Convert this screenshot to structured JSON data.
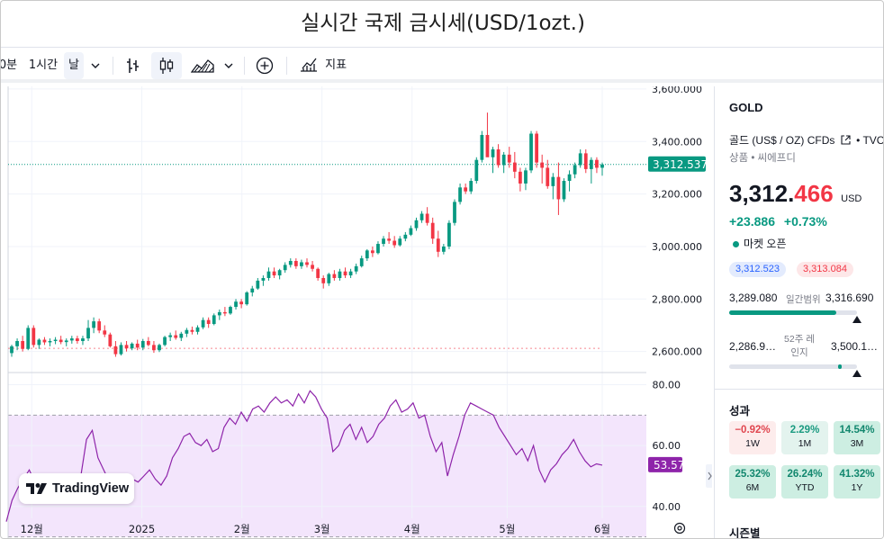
{
  "window": {
    "title": "실시간 국제 금시세(USD/1ozt.)"
  },
  "toolbar": {
    "interval_min": "0분",
    "interval_hour": "1시간",
    "interval_day": "날",
    "indicators_label": "지표"
  },
  "chart_data": [
    {
      "type": "candlestick",
      "title": "",
      "y_ticks": [
        "3,600.000",
        "3,400.000",
        "3,200.000",
        "3,000.000",
        "2,800.000",
        "2,600.000"
      ],
      "ylim": [
        2520,
        3610
      ],
      "x_ticks": [
        "12월",
        "2025",
        "2월",
        "3월",
        "4월",
        "5월",
        "6월"
      ],
      "last_price_label": "3,312.537",
      "last_price": 3312.537,
      "reference_line": 2612,
      "colors": {
        "up": "#089981",
        "down": "#f23645"
      },
      "candles_ohlc": [
        [
          2594,
          2626,
          2580,
          2620
        ],
        [
          2620,
          2650,
          2605,
          2640
        ],
        [
          2640,
          2660,
          2600,
          2610
        ],
        [
          2610,
          2700,
          2605,
          2690
        ],
        [
          2690,
          2700,
          2615,
          2625
        ],
        [
          2625,
          2650,
          2610,
          2645
        ],
        [
          2645,
          2655,
          2625,
          2635
        ],
        [
          2635,
          2650,
          2620,
          2640
        ],
        [
          2640,
          2655,
          2628,
          2645
        ],
        [
          2645,
          2660,
          2628,
          2636
        ],
        [
          2636,
          2650,
          2620,
          2642
        ],
        [
          2642,
          2660,
          2630,
          2650
        ],
        [
          2650,
          2660,
          2630,
          2640
        ],
        [
          2640,
          2660,
          2625,
          2650
        ],
        [
          2650,
          2720,
          2640,
          2690
        ],
        [
          2690,
          2730,
          2670,
          2715
        ],
        [
          2715,
          2725,
          2670,
          2680
        ],
        [
          2680,
          2700,
          2655,
          2665
        ],
        [
          2665,
          2672,
          2615,
          2620
        ],
        [
          2620,
          2640,
          2580,
          2590
        ],
        [
          2590,
          2635,
          2585,
          2625
        ],
        [
          2625,
          2640,
          2600,
          2612
        ],
        [
          2612,
          2635,
          2605,
          2630
        ],
        [
          2630,
          2645,
          2605,
          2615
        ],
        [
          2615,
          2648,
          2605,
          2640
        ],
        [
          2640,
          2655,
          2620,
          2625
        ],
        [
          2625,
          2640,
          2595,
          2605
        ],
        [
          2605,
          2630,
          2598,
          2625
        ],
        [
          2625,
          2660,
          2620,
          2655
        ],
        [
          2655,
          2672,
          2640,
          2662
        ],
        [
          2662,
          2680,
          2645,
          2652
        ],
        [
          2652,
          2675,
          2640,
          2668
        ],
        [
          2668,
          2690,
          2655,
          2682
        ],
        [
          2682,
          2695,
          2665,
          2675
        ],
        [
          2675,
          2700,
          2665,
          2692
        ],
        [
          2692,
          2730,
          2685,
          2720
        ],
        [
          2720,
          2730,
          2690,
          2705
        ],
        [
          2705,
          2745,
          2700,
          2738
        ],
        [
          2738,
          2760,
          2720,
          2750
        ],
        [
          2750,
          2770,
          2735,
          2745
        ],
        [
          2745,
          2775,
          2740,
          2770
        ],
        [
          2770,
          2800,
          2760,
          2790
        ],
        [
          2790,
          2800,
          2765,
          2780
        ],
        [
          2780,
          2830,
          2775,
          2825
        ],
        [
          2825,
          2850,
          2810,
          2840
        ],
        [
          2840,
          2880,
          2835,
          2870
        ],
        [
          2870,
          2890,
          2850,
          2880
        ],
        [
          2880,
          2920,
          2870,
          2905
        ],
        [
          2905,
          2920,
          2880,
          2890
        ],
        [
          2890,
          2915,
          2875,
          2910
        ],
        [
          2910,
          2940,
          2900,
          2930
        ],
        [
          2930,
          2955,
          2920,
          2945
        ],
        [
          2945,
          2955,
          2915,
          2925
        ],
        [
          2925,
          2950,
          2915,
          2940
        ],
        [
          2940,
          2955,
          2920,
          2930
        ],
        [
          2930,
          2945,
          2905,
          2915
        ],
        [
          2915,
          2920,
          2870,
          2880
        ],
        [
          2880,
          2890,
          2840,
          2860
        ],
        [
          2860,
          2900,
          2850,
          2895
        ],
        [
          2895,
          2910,
          2870,
          2880
        ],
        [
          2880,
          2915,
          2870,
          2905
        ],
        [
          2905,
          2920,
          2880,
          2890
        ],
        [
          2890,
          2915,
          2880,
          2905
        ],
        [
          2905,
          2935,
          2895,
          2925
        ],
        [
          2925,
          2965,
          2920,
          2955
        ],
        [
          2955,
          2990,
          2945,
          2985
        ],
        [
          2985,
          3000,
          2960,
          2975
        ],
        [
          2975,
          3020,
          2970,
          3010
        ],
        [
          3010,
          3040,
          3000,
          3030
        ],
        [
          3030,
          3055,
          3010,
          3022
        ],
        [
          3022,
          3040,
          2995,
          3005
        ],
        [
          3005,
          3040,
          3000,
          3030
        ],
        [
          3030,
          3055,
          3020,
          3045
        ],
        [
          3045,
          3080,
          3040,
          3070
        ],
        [
          3070,
          3110,
          3060,
          3100
        ],
        [
          3100,
          3135,
          3090,
          3125
        ],
        [
          3125,
          3150,
          3080,
          3090
        ],
        [
          3090,
          3110,
          3010,
          3030
        ],
        [
          3030,
          3060,
          2960,
          2980
        ],
        [
          2980,
          3010,
          2970,
          3000
        ],
        [
          3000,
          3100,
          2990,
          3090
        ],
        [
          3090,
          3180,
          3080,
          3170
        ],
        [
          3170,
          3240,
          3160,
          3225
        ],
        [
          3225,
          3240,
          3200,
          3210
        ],
        [
          3210,
          3260,
          3200,
          3250
        ],
        [
          3250,
          3340,
          3240,
          3330
        ],
        [
          3330,
          3440,
          3320,
          3425
        ],
        [
          3425,
          3510,
          3400,
          3340
        ],
        [
          3340,
          3380,
          3280,
          3370
        ],
        [
          3370,
          3390,
          3300,
          3310
        ],
        [
          3310,
          3360,
          3280,
          3350
        ],
        [
          3350,
          3380,
          3300,
          3320
        ],
        [
          3320,
          3360,
          3260,
          3285
        ],
        [
          3285,
          3300,
          3210,
          3240
        ],
        [
          3240,
          3300,
          3215,
          3290
        ],
        [
          3290,
          3440,
          3280,
          3430
        ],
        [
          3430,
          3440,
          3300,
          3320
        ],
        [
          3320,
          3350,
          3240,
          3300
        ],
        [
          3300,
          3330,
          3220,
          3230
        ],
        [
          3230,
          3280,
          3180,
          3265
        ],
        [
          3265,
          3320,
          3120,
          3180
        ],
        [
          3180,
          3260,
          3170,
          3250
        ],
        [
          3250,
          3290,
          3210,
          3275
        ],
        [
          3275,
          3320,
          3260,
          3310
        ],
        [
          3310,
          3370,
          3300,
          3355
        ],
        [
          3355,
          3370,
          3280,
          3295
        ],
        [
          3295,
          3340,
          3240,
          3330
        ],
        [
          3330,
          3340,
          3280,
          3300
        ],
        [
          3300,
          3320,
          3270,
          3312.537
        ]
      ]
    },
    {
      "type": "line",
      "title": "",
      "y_ticks": [
        "80.00",
        "60.00",
        "40.00"
      ],
      "ylim": [
        29,
        84
      ],
      "band": [
        30,
        70
      ],
      "last_value_label": "53.57",
      "color": "#8e24aa",
      "values": [
        35,
        42,
        46,
        49,
        52,
        48,
        45,
        44,
        46,
        45,
        48,
        47,
        49,
        50,
        62,
        65,
        56,
        52,
        48,
        43,
        44,
        47,
        49,
        48,
        50,
        52,
        49,
        47,
        50,
        56,
        59,
        63,
        64,
        61,
        60,
        62,
        58,
        59,
        66,
        69,
        67,
        71,
        68,
        72,
        73,
        71,
        74,
        76,
        74,
        75,
        73,
        77,
        74,
        78,
        76,
        72,
        69,
        58,
        60,
        65,
        67,
        62,
        66,
        61,
        63,
        67,
        69,
        73,
        75,
        71,
        72,
        74,
        69,
        70,
        63,
        58,
        61,
        50,
        57,
        63,
        70,
        74,
        73,
        72,
        71,
        70,
        66,
        63,
        60,
        57,
        59,
        55,
        60,
        52,
        48,
        52,
        54,
        57,
        59,
        62,
        58,
        55,
        53,
        54,
        53.57
      ]
    }
  ],
  "sidebar": {
    "symbol": "GOLD",
    "name": "골드 (US$ / OZ) CFDs",
    "source": "TVC",
    "category": "상품 • 씨에프디",
    "price_main": "3,312.",
    "price_frac": "466",
    "currency": "USD",
    "change_abs": "+23.886",
    "change_pct": "+0.73%",
    "market_status": "마켓 오픈",
    "bid": "3,312.523",
    "ask": "3,313.084",
    "day_low": "3,289.080",
    "day_label": "일간범위",
    "day_high": "3,316.690",
    "day_range_fraction": 0.84,
    "wk52_low": "2,286.9…",
    "wk52_label": "52주 레인지",
    "wk52_high": "3,500.1…",
    "wk52_range_fraction": 0.85,
    "performance_title": "성과",
    "performance": [
      {
        "value": "−0.92%",
        "label": "1W"
      },
      {
        "value": "2.29%",
        "label": "1M"
      },
      {
        "value": "14.54%",
        "label": "3M"
      },
      {
        "value": "25.32%",
        "label": "6M"
      },
      {
        "value": "26.24%",
        "label": "YTD"
      },
      {
        "value": "41.32%",
        "label": "1Y"
      }
    ],
    "seasonality_title": "시즌별"
  },
  "colors": {
    "up": "#089981",
    "down": "#f23645",
    "accent": "#2962ff",
    "rsi": "#8e24aa"
  },
  "logo": {
    "text": "TradingView"
  }
}
